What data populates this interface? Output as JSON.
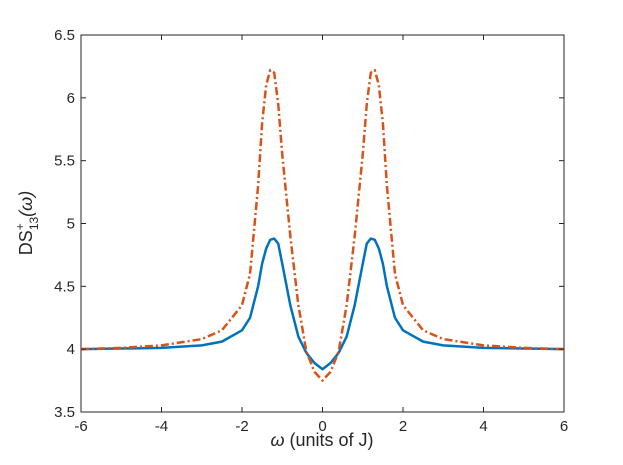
{
  "chart_data": {
    "type": "line",
    "title": "",
    "xlabel": {
      "symbol": "ω",
      "text": " (units of J)"
    },
    "ylabel": {
      "base": "DS",
      "sup": "+",
      "sub": "13",
      "arg": "(ω)"
    },
    "xlim": [
      -6,
      6
    ],
    "ylim": [
      3.5,
      6.5
    ],
    "xticks": [
      -6,
      -4,
      -2,
      0,
      2,
      4,
      6
    ],
    "xtick_labels": [
      "-6",
      "-4",
      "-2",
      "0",
      "2",
      "4",
      "6"
    ],
    "yticks": [
      3.5,
      4,
      4.5,
      5,
      5.5,
      6,
      6.5
    ],
    "ytick_labels": [
      "3.5",
      "4",
      "4.5",
      "5",
      "5.5",
      "6",
      "6.5"
    ],
    "grid": false,
    "legend": "none",
    "series": [
      {
        "color": "#0072BD",
        "style": "solid",
        "x": [
          -6,
          -5,
          -4,
          -3,
          -2.5,
          -2,
          -1.8,
          -1.6,
          -1.5,
          -1.4,
          -1.3,
          -1.2,
          -1.1,
          -1.0,
          -0.8,
          -0.6,
          -0.4,
          -0.2,
          0,
          0.2,
          0.4,
          0.6,
          0.8,
          1.0,
          1.1,
          1.2,
          1.3,
          1.4,
          1.5,
          1.6,
          1.8,
          2,
          2.5,
          3,
          4,
          5,
          6
        ],
        "y": [
          4.0,
          4.005,
          4.01,
          4.03,
          4.06,
          4.15,
          4.25,
          4.5,
          4.68,
          4.8,
          4.87,
          4.88,
          4.84,
          4.68,
          4.35,
          4.1,
          3.97,
          3.89,
          3.84,
          3.89,
          3.97,
          4.1,
          4.35,
          4.68,
          4.84,
          4.88,
          4.87,
          4.8,
          4.68,
          4.5,
          4.25,
          4.15,
          4.06,
          4.03,
          4.01,
          4.005,
          4.0
        ]
      },
      {
        "color": "#D95319",
        "style": "dashdot",
        "x": [
          -6,
          -5,
          -4,
          -3,
          -2.5,
          -2,
          -1.8,
          -1.6,
          -1.5,
          -1.4,
          -1.3,
          -1.2,
          -1.1,
          -1.0,
          -0.8,
          -0.6,
          -0.4,
          -0.2,
          0,
          0.2,
          0.4,
          0.6,
          0.8,
          1.0,
          1.1,
          1.2,
          1.3,
          1.4,
          1.5,
          1.6,
          1.8,
          2,
          2.5,
          3,
          4,
          5,
          6
        ],
        "y": [
          4.0,
          4.01,
          4.03,
          4.08,
          4.15,
          4.35,
          4.6,
          5.3,
          5.8,
          6.1,
          6.22,
          6.2,
          5.95,
          5.55,
          4.9,
          4.35,
          3.98,
          3.82,
          3.75,
          3.82,
          3.98,
          4.35,
          4.9,
          5.55,
          5.95,
          6.2,
          6.22,
          6.1,
          5.8,
          5.3,
          4.6,
          4.35,
          4.15,
          4.08,
          4.03,
          4.01,
          4.0
        ]
      }
    ]
  }
}
